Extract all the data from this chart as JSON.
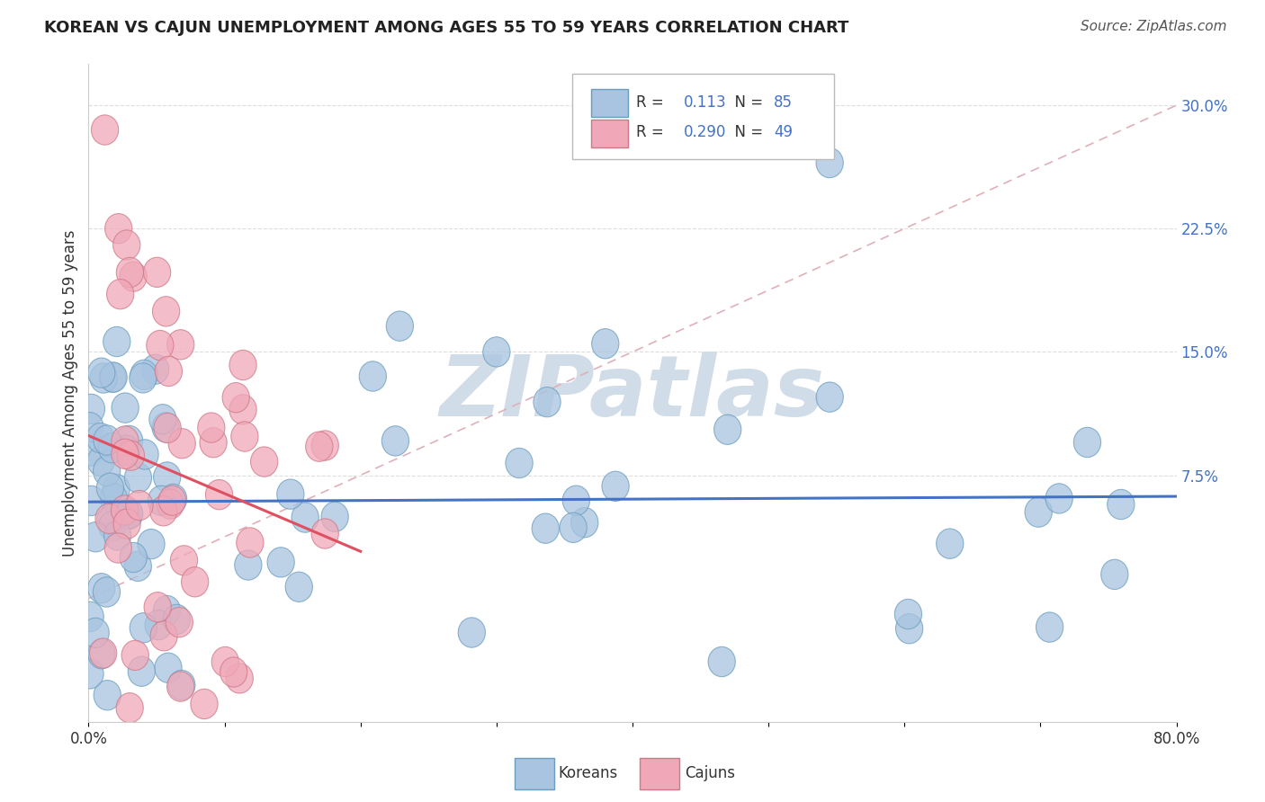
{
  "title": "KOREAN VS CAJUN UNEMPLOYMENT AMONG AGES 55 TO 59 YEARS CORRELATION CHART",
  "source": "Source: ZipAtlas.com",
  "ylabel": "Unemployment Among Ages 55 to 59 years",
  "xlim": [
    0.0,
    0.8
  ],
  "ylim": [
    -0.075,
    0.325
  ],
  "xtick_positions": [
    0.0,
    0.1,
    0.2,
    0.3,
    0.4,
    0.5,
    0.6,
    0.7,
    0.8
  ],
  "xtick_labels": [
    "0.0%",
    "",
    "",
    "",
    "",
    "",
    "",
    "",
    "80.0%"
  ],
  "ytick_labels_right": [
    "7.5%",
    "15.0%",
    "22.5%",
    "30.0%"
  ],
  "ytick_vals_right": [
    0.075,
    0.15,
    0.225,
    0.3
  ],
  "korean_R": "0.113",
  "korean_N": "85",
  "cajun_R": "0.290",
  "cajun_N": "49",
  "korean_color": "#a8c4e0",
  "cajun_color": "#f0a8b8",
  "korean_edge_color": "#6a9ec0",
  "cajun_edge_color": "#d07888",
  "korean_line_color": "#4472c4",
  "cajun_line_color": "#e05060",
  "ref_line_color": "#e0b0b8",
  "background_color": "#ffffff",
  "watermark_color": "#d0dce8",
  "title_color": "#222222",
  "source_color": "#555555",
  "grid_color": "#dddddd",
  "axis_color": "#cccccc",
  "label_color": "#333333",
  "right_tick_color": "#4472c4"
}
